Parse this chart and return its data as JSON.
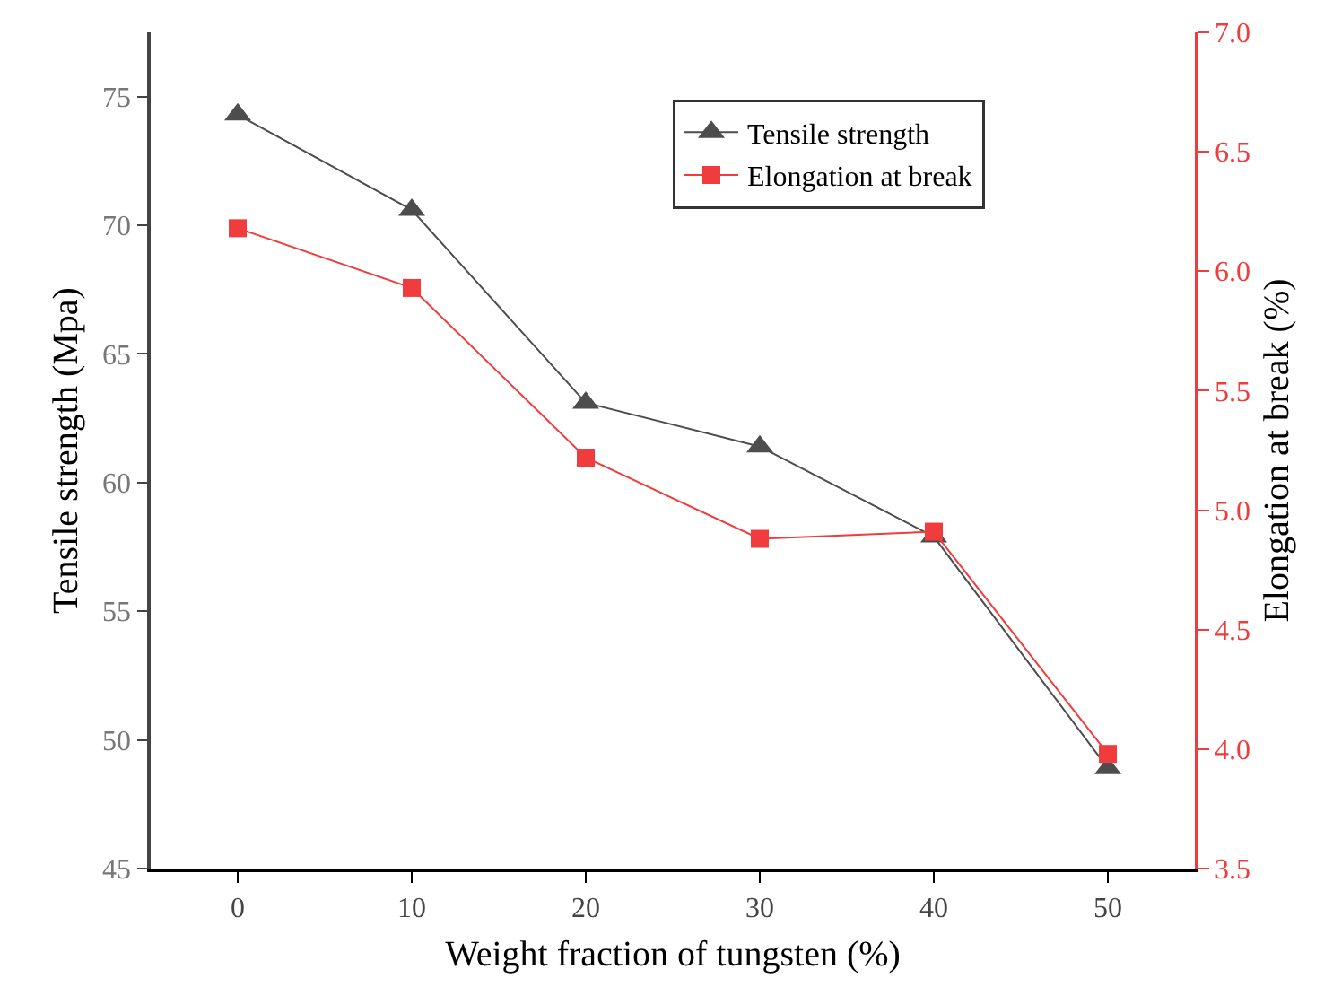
{
  "chart_data": {
    "type": "line",
    "xlabel": "Weight fraction of tungsten (%)",
    "ylabel": "Tensile strength (Mpa)",
    "y2label": "Elongation at break (%)",
    "x": [
      0,
      10,
      20,
      30,
      40,
      50
    ],
    "xlim": [
      -5,
      55
    ],
    "xticks": [
      0,
      10,
      20,
      30,
      40,
      50
    ],
    "ylim": [
      45,
      77.5
    ],
    "yticks": [
      45,
      50,
      55,
      60,
      65,
      70,
      75
    ],
    "y2lim": [
      3.5,
      7.0
    ],
    "y2ticks": [
      {
        "value": 3.5,
        "label": "3.5"
      },
      {
        "value": 4.0,
        "label": "4.0"
      },
      {
        "value": 4.5,
        "label": "4.5"
      },
      {
        "value": 5.0,
        "label": "5.0"
      },
      {
        "value": 5.5,
        "label": "5.5"
      },
      {
        "value": 6.0,
        "label": "6.0"
      },
      {
        "value": 6.5,
        "label": "6.5"
      },
      {
        "value": 7.0,
        "label": "7.0"
      }
    ],
    "series": [
      {
        "name": "Tensile strength",
        "color": "#4d4d4d",
        "marker": "triangle",
        "values": [
          74.3,
          70.6,
          63.1,
          61.4,
          57.9,
          48.9
        ]
      },
      {
        "name": "Elongation at break",
        "color": "#f03c3c",
        "marker": "square",
        "axis": "y2",
        "values": [
          6.18,
          5.93,
          5.22,
          4.88,
          4.91,
          3.98
        ]
      }
    ],
    "grid": false,
    "legend": "top right",
    "line_style": "solid"
  }
}
